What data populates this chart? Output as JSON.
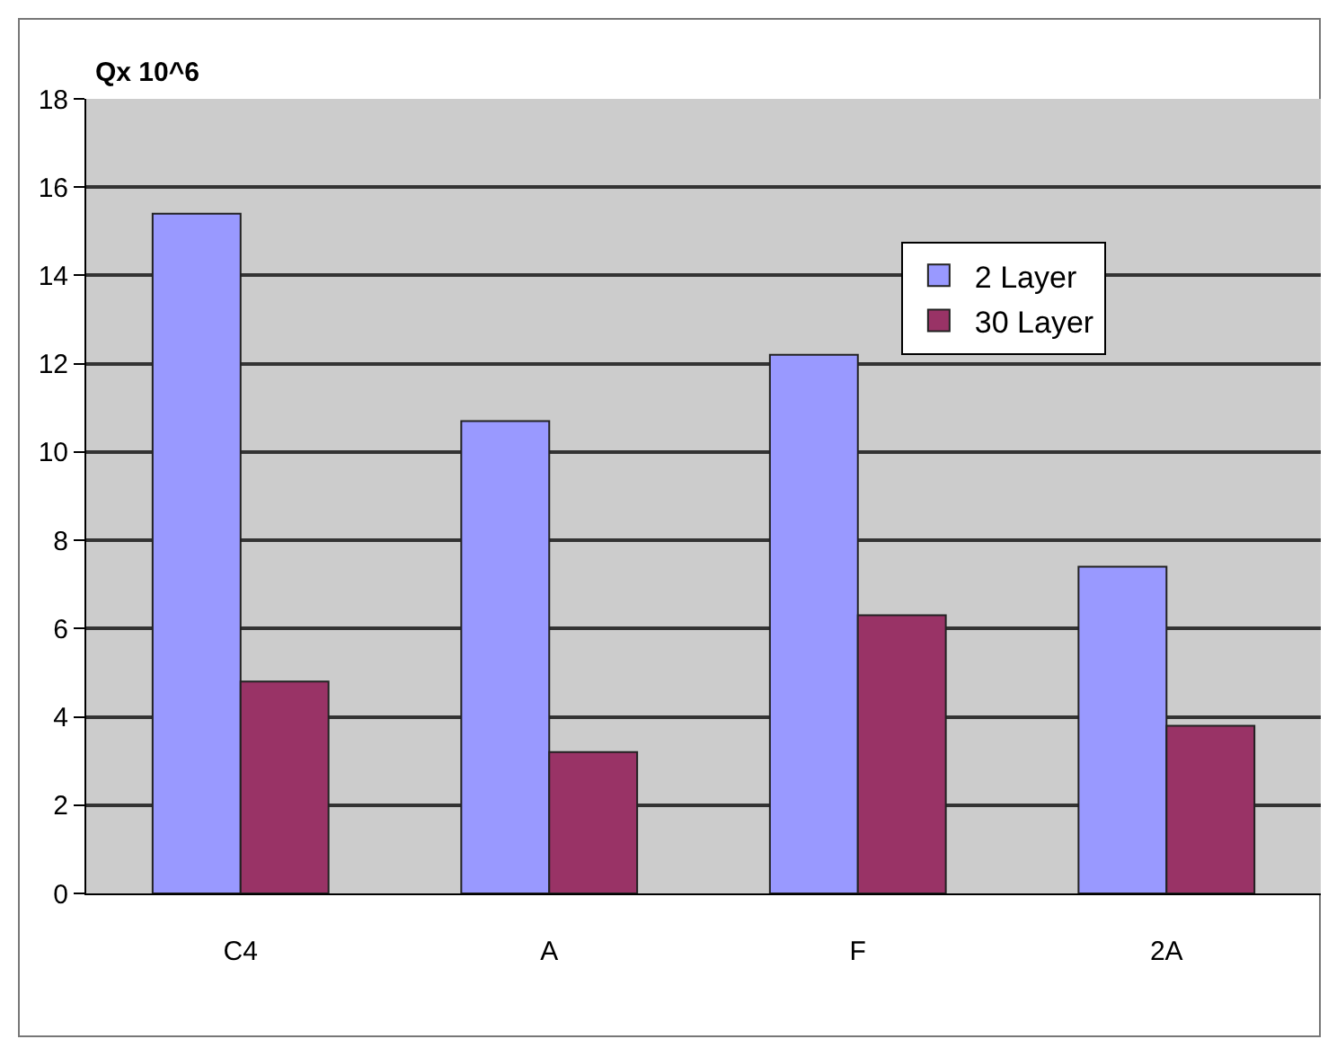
{
  "chart_data": {
    "type": "bar",
    "ylabel": "Qx 10^6",
    "categories": [
      "C4",
      "A",
      "F",
      "2A"
    ],
    "series": [
      {
        "name": "2 Layer",
        "color": "#9999ff",
        "values": [
          15.4,
          10.7,
          12.2,
          7.4
        ]
      },
      {
        "name": "30 Layer",
        "color": "#993366",
        "values": [
          4.8,
          3.2,
          6.3,
          3.8
        ]
      }
    ],
    "ylim": [
      0,
      18
    ],
    "yticks": [
      0,
      2,
      4,
      6,
      8,
      10,
      12,
      14,
      16,
      18
    ],
    "grid": "y",
    "legend": "top right"
  }
}
